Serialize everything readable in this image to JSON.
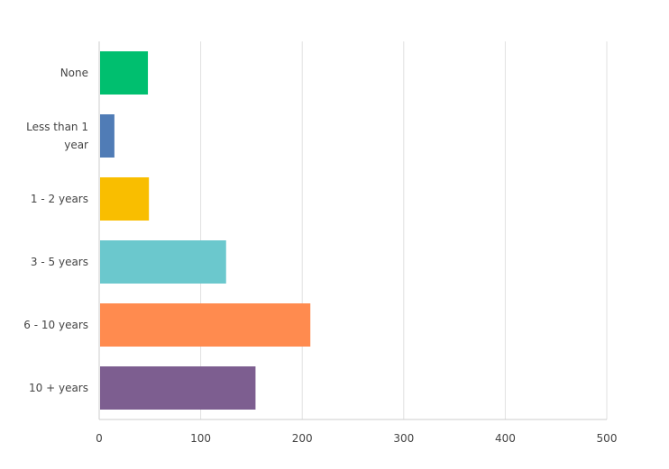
{
  "chart_data": {
    "type": "bar",
    "orientation": "horizontal",
    "categories": [
      [
        "None"
      ],
      [
        "Less than 1",
        "year"
      ],
      [
        "1 - 2 years"
      ],
      [
        "3 - 5 years"
      ],
      [
        "6 - 10 years"
      ],
      [
        "10 + years"
      ]
    ],
    "values": [
      48,
      15,
      49,
      125,
      208,
      154
    ],
    "colors": [
      "#00bf6f",
      "#507cb6",
      "#f9be00",
      "#6bc8cd",
      "#ff8b4f",
      "#7d5e90"
    ],
    "xlim": [
      0,
      500
    ],
    "xticks": [
      "0",
      "100",
      "200",
      "300",
      "400",
      "500"
    ],
    "grid": true,
    "title": "",
    "xlabel": "",
    "ylabel": ""
  }
}
